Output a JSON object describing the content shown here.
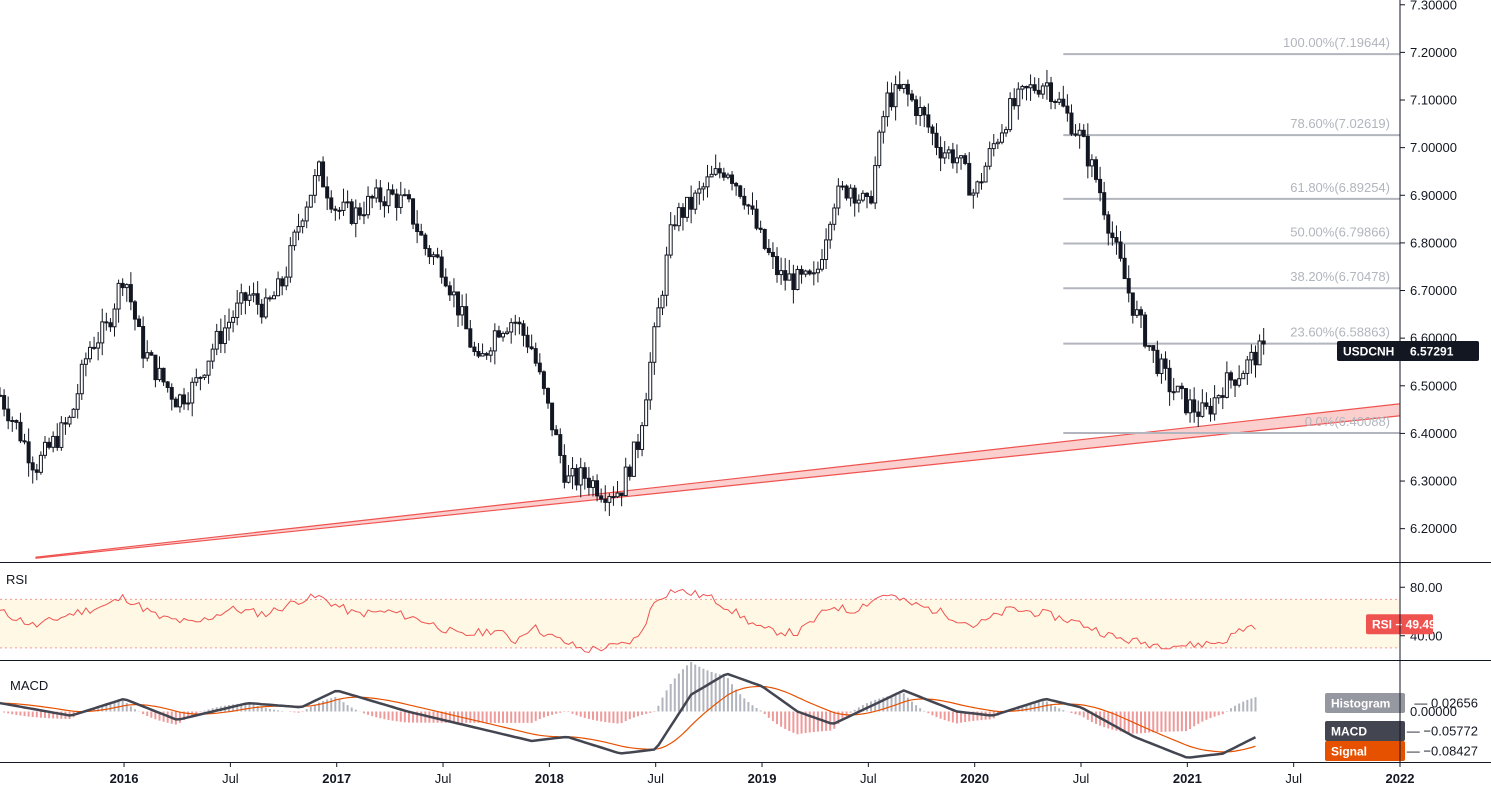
{
  "chart_data": {
    "type": "candlestick",
    "symbol": "USDCNH",
    "last_price_label": "6.57291",
    "y_ticks": [
      "7.30000",
      "7.20000",
      "7.10000",
      "7.00000",
      "6.90000",
      "6.80000",
      "6.70000",
      "6.60000",
      "6.50000",
      "6.40000",
      "6.30000",
      "6.20000"
    ],
    "y_tick_values": [
      7.3,
      7.2,
      7.1,
      7.0,
      6.9,
      6.8,
      6.7,
      6.6,
      6.5,
      6.4,
      6.3,
      6.2
    ],
    "x_ticks": [
      "2016",
      "Jul",
      "2017",
      "Jul",
      "2018",
      "Jul",
      "2019",
      "Jul",
      "2020",
      "Jul",
      "2021",
      "Jul",
      "2022"
    ],
    "x_tick_bold": [
      true,
      false,
      true,
      false,
      true,
      false,
      true,
      false,
      true,
      false,
      true,
      false,
      true
    ],
    "date_range": [
      "2015-06",
      "2022-01"
    ],
    "timeframe": "weekly",
    "price_range": [
      6.13,
      7.31
    ],
    "fibonacci": [
      {
        "label": "100.00%(7.19644)",
        "value": 7.19644
      },
      {
        "label": "78.60%(7.02619)",
        "value": 7.02619
      },
      {
        "label": "61.80%(6.89254)",
        "value": 6.89254
      },
      {
        "label": "50.00%(6.79866)",
        "value": 6.79866
      },
      {
        "label": "38.20%(6.70478)",
        "value": 6.70478
      },
      {
        "label": "23.60%(6.58863)",
        "value": 6.58863
      },
      {
        "label": "0.0%(6.40088)",
        "value": 6.40088
      }
    ],
    "trendline_support": {
      "from": [
        "2015-08",
        6.14
      ],
      "to": [
        "2021-06",
        6.41
      ],
      "color": "#ef5350"
    },
    "price_anchors": [
      [
        "2015-06",
        6.48
      ],
      [
        "2015-07",
        6.41
      ],
      [
        "2015-08",
        6.33
      ],
      [
        "2015-09",
        6.38
      ],
      [
        "2015-10",
        6.43
      ],
      [
        "2015-11",
        6.58
      ],
      [
        "2015-12",
        6.62
      ],
      [
        "2016-01",
        6.74
      ],
      [
        "2016-02",
        6.58
      ],
      [
        "2016-03",
        6.52
      ],
      [
        "2016-04",
        6.47
      ],
      [
        "2016-05",
        6.5
      ],
      [
        "2016-06",
        6.58
      ],
      [
        "2016-07",
        6.64
      ],
      [
        "2016-08",
        6.69
      ],
      [
        "2016-09",
        6.66
      ],
      [
        "2016-10",
        6.72
      ],
      [
        "2016-11",
        6.86
      ],
      [
        "2016-12",
        6.95
      ],
      [
        "2017-01",
        6.87
      ],
      [
        "2017-02",
        6.86
      ],
      [
        "2017-03",
        6.89
      ],
      [
        "2017-04",
        6.9
      ],
      [
        "2017-05",
        6.88
      ],
      [
        "2017-06",
        6.79
      ],
      [
        "2017-07",
        6.75
      ],
      [
        "2017-08",
        6.65
      ],
      [
        "2017-09",
        6.54
      ],
      [
        "2017-10",
        6.62
      ],
      [
        "2017-11",
        6.64
      ],
      [
        "2017-12",
        6.58
      ],
      [
        "2018-01",
        6.44
      ],
      [
        "2018-02",
        6.3
      ],
      [
        "2018-03",
        6.31
      ],
      [
        "2018-04",
        6.28
      ],
      [
        "2018-05",
        6.28
      ],
      [
        "2018-06",
        6.38
      ],
      [
        "2018-07",
        6.62
      ],
      [
        "2018-08",
        6.85
      ],
      [
        "2018-09",
        6.88
      ],
      [
        "2018-10",
        6.93
      ],
      [
        "2018-11",
        6.96
      ],
      [
        "2018-12",
        6.9
      ],
      [
        "2019-01",
        6.8
      ],
      [
        "2019-02",
        6.73
      ],
      [
        "2019-03",
        6.72
      ],
      [
        "2019-04",
        6.72
      ],
      [
        "2019-05",
        6.89
      ],
      [
        "2019-06",
        6.92
      ],
      [
        "2019-07",
        6.87
      ],
      [
        "2019-08",
        7.1
      ],
      [
        "2019-09",
        7.12
      ],
      [
        "2019-10",
        7.07
      ],
      [
        "2019-11",
        7.0
      ],
      [
        "2019-12",
        6.98
      ],
      [
        "2020-01",
        6.9
      ],
      [
        "2020-02",
        7.0
      ],
      [
        "2020-03",
        7.08
      ],
      [
        "2020-04",
        7.12
      ],
      [
        "2020-05",
        7.14
      ],
      [
        "2020-06",
        7.08
      ],
      [
        "2020-07",
        7.02
      ],
      [
        "2020-08",
        6.92
      ],
      [
        "2020-09",
        6.78
      ],
      [
        "2020-10",
        6.66
      ],
      [
        "2020-11",
        6.57
      ],
      [
        "2020-12",
        6.5
      ],
      [
        "2021-01",
        6.46
      ],
      [
        "2021-02",
        6.44
      ],
      [
        "2021-03",
        6.5
      ],
      [
        "2021-04",
        6.53
      ],
      [
        "2021-05",
        6.57
      ]
    ],
    "rsi": {
      "title": "RSI",
      "label": "RSI",
      "value_label": "49.49",
      "y_ticks": [
        "80.00",
        "40.00"
      ],
      "y_tick_values": [
        80,
        40
      ],
      "range": [
        20,
        100
      ],
      "overbought": 70,
      "oversold": 30,
      "color": "#ef5350",
      "anchors": [
        [
          "2015-06",
          60
        ],
        [
          "2015-08",
          48
        ],
        [
          "2015-10",
          58
        ],
        [
          "2015-12",
          65
        ],
        [
          "2016-01",
          72
        ],
        [
          "2016-03",
          55
        ],
        [
          "2016-05",
          50
        ],
        [
          "2016-07",
          62
        ],
        [
          "2016-09",
          58
        ],
        [
          "2016-11",
          70
        ],
        [
          "2016-12",
          72
        ],
        [
          "2017-02",
          58
        ],
        [
          "2017-04",
          60
        ],
        [
          "2017-06",
          52
        ],
        [
          "2017-08",
          40
        ],
        [
          "2017-10",
          45
        ],
        [
          "2017-11",
          35
        ],
        [
          "2017-12",
          48
        ],
        [
          "2018-01",
          40
        ],
        [
          "2018-03",
          28
        ],
        [
          "2018-05",
          32
        ],
        [
          "2018-06",
          38
        ],
        [
          "2018-07",
          70
        ],
        [
          "2018-08",
          78
        ],
        [
          "2018-10",
          72
        ],
        [
          "2018-11",
          64
        ],
        [
          "2019-01",
          45
        ],
        [
          "2019-03",
          42
        ],
        [
          "2019-05",
          65
        ],
        [
          "2019-06",
          60
        ],
        [
          "2019-08",
          75
        ],
        [
          "2019-09",
          68
        ],
        [
          "2019-11",
          60
        ],
        [
          "2020-01",
          48
        ],
        [
          "2020-03",
          62
        ],
        [
          "2020-05",
          58
        ],
        [
          "2020-07",
          50
        ],
        [
          "2020-09",
          38
        ],
        [
          "2020-11",
          33
        ],
        [
          "2021-01",
          32
        ],
        [
          "2021-03",
          35
        ],
        [
          "2021-04",
          45
        ],
        [
          "2021-05",
          49.5
        ]
      ]
    },
    "macd": {
      "title": "MACD",
      "histogram_label": "Histogram",
      "histogram_value": "0.02656",
      "macd_label": "MACD",
      "macd_value": "−0.05772",
      "signal_label": "Signal",
      "signal_value": "−0.08427",
      "y_tick_label": "0.00000",
      "range": [
        -0.12,
        0.12
      ],
      "macd_color": "#434651",
      "signal_color": "#e65100",
      "histogram_pos_color": "#b2b5be",
      "histogram_neg_color": "#ef9a9a",
      "macd_anchors": [
        [
          "2015-06",
          0.02
        ],
        [
          "2015-10",
          -0.01
        ],
        [
          "2016-01",
          0.03
        ],
        [
          "2016-04",
          -0.02
        ],
        [
          "2016-08",
          0.02
        ],
        [
          "2016-11",
          0.01
        ],
        [
          "2017-01",
          0.05
        ],
        [
          "2017-05",
          0.0
        ],
        [
          "2017-09",
          -0.04
        ],
        [
          "2017-12",
          -0.07
        ],
        [
          "2018-02",
          -0.06
        ],
        [
          "2018-05",
          -0.1
        ],
        [
          "2018-07",
          -0.09
        ],
        [
          "2018-09",
          0.04
        ],
        [
          "2018-11",
          0.09
        ],
        [
          "2019-01",
          0.06
        ],
        [
          "2019-03",
          0.0
        ],
        [
          "2019-05",
          -0.03
        ],
        [
          "2019-07",
          0.01
        ],
        [
          "2019-09",
          0.05
        ],
        [
          "2019-12",
          0.0
        ],
        [
          "2020-02",
          -0.01
        ],
        [
          "2020-05",
          0.03
        ],
        [
          "2020-07",
          0.01
        ],
        [
          "2020-10",
          -0.06
        ],
        [
          "2021-01",
          -0.11
        ],
        [
          "2021-03",
          -0.1
        ],
        [
          "2021-05",
          -0.058
        ]
      ]
    }
  }
}
